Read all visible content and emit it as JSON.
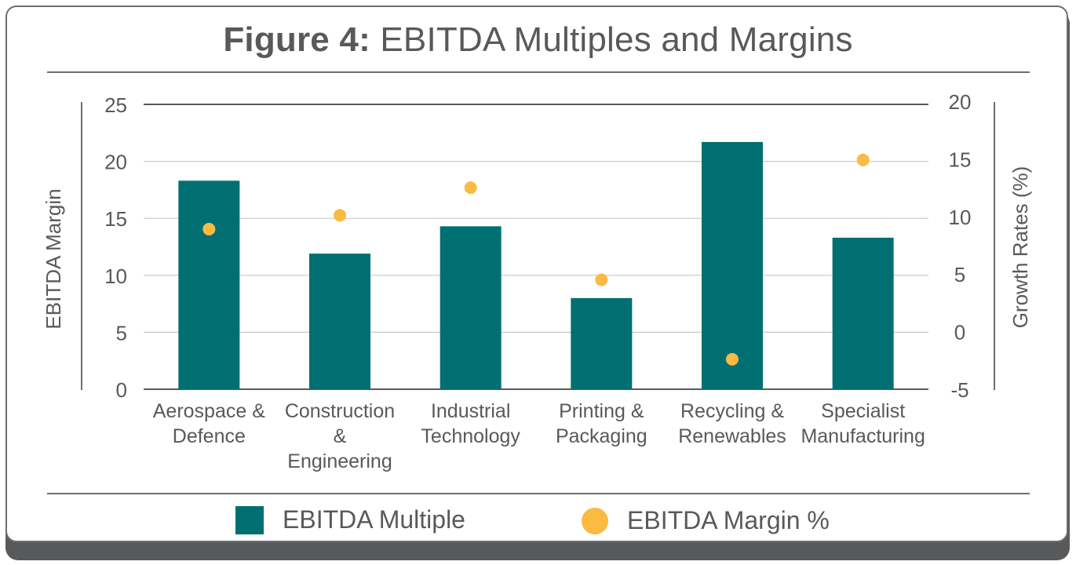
{
  "title": {
    "bold": "Figure 4:",
    "rest": "EBITDA Multiples and Margins"
  },
  "colors": {
    "bar": "#006f72",
    "dot": "#fbba42",
    "text": "#58595b"
  },
  "chart_data": {
    "type": "bar",
    "categories": [
      [
        "Aerospace &",
        "Defence"
      ],
      [
        "Construction",
        "&",
        "Engineering"
      ],
      [
        "Industrial",
        "Technology"
      ],
      [
        "Printing &",
        "Packaging"
      ],
      [
        "Recycling &",
        "Renewables"
      ],
      [
        "Specialist",
        "Manufacturing"
      ]
    ],
    "series": [
      {
        "name": "EBITDA Multiple",
        "axis": "left",
        "kind": "bar",
        "values": [
          18.3,
          11.9,
          14.3,
          8.0,
          21.7,
          13.3
        ]
      },
      {
        "name": "EBITDA Margin %",
        "axis": "right",
        "kind": "scatter",
        "values": [
          8.9,
          10.1,
          12.5,
          4.5,
          -2.4,
          14.9
        ]
      }
    ],
    "ylabel": "EBITDA Margin",
    "ylim": [
      0,
      25
    ],
    "yticks": [
      0,
      5,
      10,
      15,
      20,
      25
    ],
    "y2label": "Growth Rates (%)",
    "y2lim": [
      -5,
      20
    ],
    "y2ticks": [
      -5,
      0,
      5,
      10,
      15,
      20
    ],
    "grid": true,
    "legend": "bottom"
  }
}
